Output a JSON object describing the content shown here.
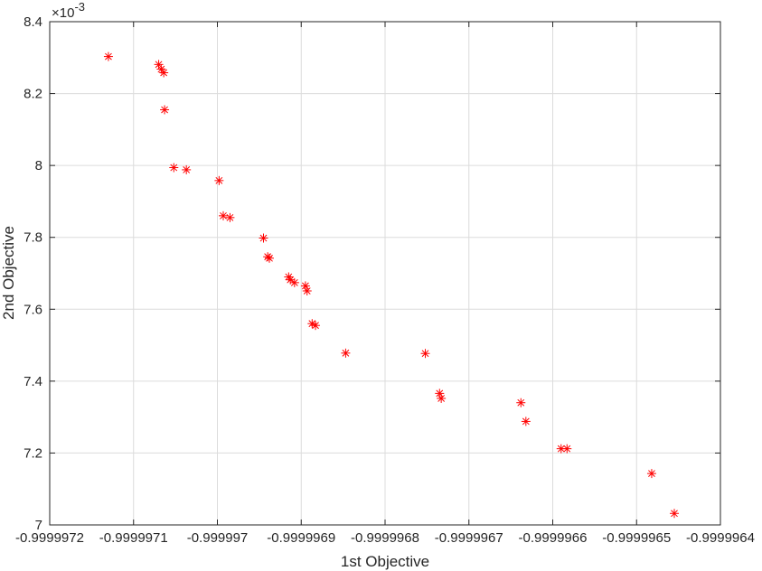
{
  "chart_data": {
    "type": "scatter",
    "xlabel": "1st Objective",
    "ylabel": "2nd Objective",
    "y_exponent_base": "10",
    "y_exponent_power": "-3",
    "xlim": [
      -0.9999972,
      -0.9999964
    ],
    "ylim": [
      7.0,
      8.4
    ],
    "x_ticks": [
      -0.9999972,
      -0.9999971,
      -0.999997,
      -0.9999969,
      -0.9999968,
      -0.9999967,
      -0.9999966,
      -0.9999965,
      -0.9999964
    ],
    "x_tick_labels": [
      "-0.9999972",
      "-0.9999971",
      "-0.999997",
      "-0.9999969",
      "-0.9999968",
      "-0.9999967",
      "-0.9999966",
      "-0.9999965",
      "-0.9999964"
    ],
    "y_ticks": [
      7.0,
      7.2,
      7.4,
      7.6,
      7.8,
      8.0,
      8.2,
      8.4
    ],
    "y_tick_labels": [
      "7",
      "7.2",
      "7.4",
      "7.6",
      "7.8",
      "8",
      "8.2",
      "8.4"
    ],
    "grid": true,
    "marker": "asterisk",
    "marker_color": "#ff0000",
    "points": [
      {
        "x": -0.99999713,
        "y": 8.303
      },
      {
        "x": -0.99999707,
        "y": 8.281
      },
      {
        "x": -0.999997067,
        "y": 8.268
      },
      {
        "x": -0.999997064,
        "y": 8.258
      },
      {
        "x": -0.999997063,
        "y": 8.155
      },
      {
        "x": -0.999997052,
        "y": 7.994
      },
      {
        "x": -0.999997037,
        "y": 7.988
      },
      {
        "x": -0.999996998,
        "y": 7.958
      },
      {
        "x": -0.999996993,
        "y": 7.86
      },
      {
        "x": -0.999996985,
        "y": 7.855
      },
      {
        "x": -0.999996945,
        "y": 7.798
      },
      {
        "x": -0.99999694,
        "y": 7.746
      },
      {
        "x": -0.999996938,
        "y": 7.742
      },
      {
        "x": -0.999996915,
        "y": 7.69
      },
      {
        "x": -0.999996913,
        "y": 7.682
      },
      {
        "x": -0.999996908,
        "y": 7.674
      },
      {
        "x": -0.999996895,
        "y": 7.665
      },
      {
        "x": -0.999996893,
        "y": 7.651
      },
      {
        "x": -0.999996887,
        "y": 7.56
      },
      {
        "x": -0.999996883,
        "y": 7.555
      },
      {
        "x": -0.999996847,
        "y": 7.478
      },
      {
        "x": -0.999996752,
        "y": 7.477
      },
      {
        "x": -0.999996735,
        "y": 7.366
      },
      {
        "x": -0.999996733,
        "y": 7.352
      },
      {
        "x": -0.999996638,
        "y": 7.34
      },
      {
        "x": -0.999996632,
        "y": 7.288
      },
      {
        "x": -0.99999659,
        "y": 7.212
      },
      {
        "x": -0.999996583,
        "y": 7.212
      },
      {
        "x": -0.999996482,
        "y": 7.143
      },
      {
        "x": -0.999996455,
        "y": 7.032
      }
    ]
  }
}
